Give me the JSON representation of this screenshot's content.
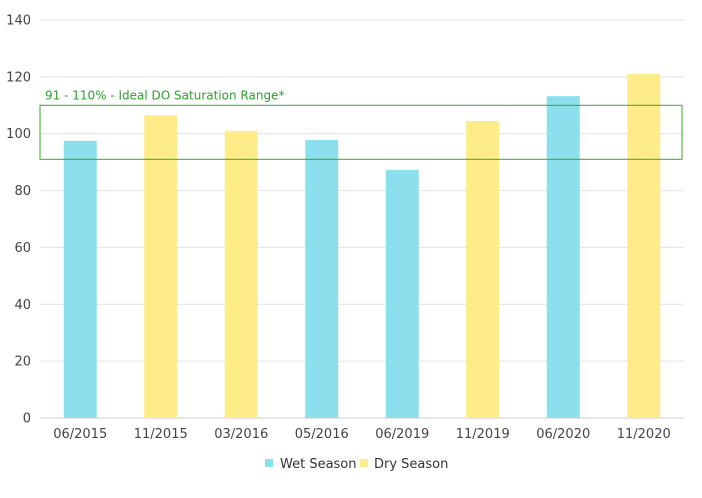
{
  "chart_data": {
    "type": "bar",
    "categories": [
      "06/2015",
      "11/2015",
      "03/2016",
      "05/2016",
      "06/2019",
      "11/2019",
      "06/2020",
      "11/2020"
    ],
    "values": [
      97.5,
      106.5,
      101,
      97.8,
      87.3,
      104.5,
      113.2,
      121
    ],
    "bar_series": [
      "Wet Season",
      "Dry Season",
      "Dry Season",
      "Wet Season",
      "Wet Season",
      "Dry Season",
      "Wet Season",
      "Dry Season"
    ],
    "series": [
      {
        "name": "Wet Season",
        "color": "#8ce0ee"
      },
      {
        "name": "Dry Season",
        "color": "#fdec88"
      }
    ],
    "ylim": [
      0,
      140
    ],
    "yticks": [
      0,
      20,
      40,
      60,
      80,
      100,
      120,
      140
    ],
    "grid": true,
    "legend_position": "bottom",
    "annotations": [
      {
        "type": "band",
        "y_from": 91,
        "y_to": 110,
        "label": "91 - 110% - Ideal DO Saturation Range*",
        "color": "#33aa22"
      }
    ]
  }
}
